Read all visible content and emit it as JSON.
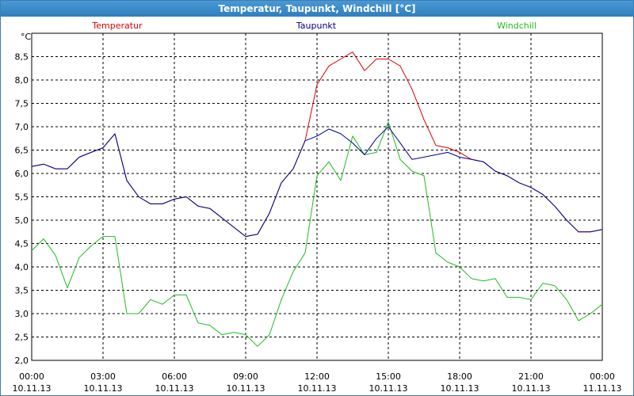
{
  "window": {
    "title": "Temperatur, Taupunkt, Windchill [°C]"
  },
  "chart_data": {
    "type": "line",
    "title": "Temperatur, Taupunkt, Windchill [°C]",
    "ylabel": "°C",
    "xlabel": "",
    "ylim": [
      2.0,
      9.0
    ],
    "xlim": [
      0,
      24
    ],
    "grid": true,
    "legend_position": "top",
    "y_ticks": [
      "2,0",
      "2,5",
      "3,0",
      "3,5",
      "4,0",
      "4,5",
      "5,0",
      "5,5",
      "6,0",
      "6,5",
      "7,0",
      "7,5",
      "8,0",
      "8,5"
    ],
    "y_tick_values": [
      2.0,
      2.5,
      3.0,
      3.5,
      4.0,
      4.5,
      5.0,
      5.5,
      6.0,
      6.5,
      7.0,
      7.5,
      8.0,
      8.5
    ],
    "x_ticks": [
      {
        "time": "00:00",
        "date": "10.11.13",
        "hour": 0
      },
      {
        "time": "03:00",
        "date": "10.11.13",
        "hour": 3
      },
      {
        "time": "06:00",
        "date": "10.11.13",
        "hour": 6
      },
      {
        "time": "09:00",
        "date": "10.11.13",
        "hour": 9
      },
      {
        "time": "12:00",
        "date": "10.11.13",
        "hour": 12
      },
      {
        "time": "15:00",
        "date": "10.11.13",
        "hour": 15
      },
      {
        "time": "18:00",
        "date": "10.11.13",
        "hour": 18
      },
      {
        "time": "21:00",
        "date": "10.11.13",
        "hour": 21
      },
      {
        "time": "00:00",
        "date": "11.11.13",
        "hour": 24
      }
    ],
    "x_hours": [
      0,
      0.5,
      1,
      1.5,
      2,
      2.5,
      3,
      3.5,
      4,
      4.5,
      5,
      5.5,
      6,
      6.5,
      7,
      7.5,
      8,
      8.5,
      9,
      9.5,
      10,
      10.5,
      11,
      11.5,
      12,
      12.5,
      13,
      13.5,
      14,
      14.5,
      15,
      15.5,
      16,
      16.5,
      17,
      17.5,
      18,
      18.5,
      19,
      19.5,
      20,
      20.5,
      21,
      21.5,
      22,
      22.5,
      23,
      23.5,
      24
    ],
    "series": [
      {
        "name": "Temperatur",
        "color": "#dd0000",
        "values": [
          6.15,
          6.2,
          6.1,
          6.1,
          6.35,
          6.45,
          6.55,
          6.85,
          5.85,
          5.5,
          5.35,
          5.35,
          5.45,
          5.5,
          5.3,
          5.25,
          5.05,
          4.85,
          4.65,
          4.7,
          5.15,
          5.8,
          6.1,
          6.7,
          7.9,
          8.3,
          8.45,
          8.6,
          8.2,
          8.45,
          8.45,
          8.3,
          7.8,
          7.15,
          6.6,
          6.55,
          6.45,
          6.3,
          6.25,
          6.05,
          5.95,
          5.8,
          5.7,
          5.55,
          5.3,
          5.0,
          4.75,
          4.75,
          4.8
        ]
      },
      {
        "name": "Taupunkt",
        "color": "#00008b",
        "values": [
          6.15,
          6.2,
          6.1,
          6.1,
          6.35,
          6.45,
          6.55,
          6.85,
          5.85,
          5.5,
          5.35,
          5.35,
          5.45,
          5.5,
          5.3,
          5.25,
          5.05,
          4.85,
          4.65,
          4.7,
          5.15,
          5.8,
          6.1,
          6.7,
          6.8,
          6.95,
          6.85,
          6.65,
          6.4,
          6.75,
          7.0,
          6.65,
          6.3,
          6.35,
          6.4,
          6.45,
          6.35,
          6.3,
          6.25,
          6.05,
          5.95,
          5.8,
          5.7,
          5.55,
          5.3,
          5.0,
          4.75,
          4.75,
          4.8
        ]
      },
      {
        "name": "Windchill",
        "color": "#22bb22",
        "values": [
          4.35,
          4.6,
          4.25,
          3.55,
          4.2,
          4.45,
          4.65,
          4.65,
          3.0,
          3.0,
          3.3,
          3.2,
          3.4,
          3.4,
          2.8,
          2.75,
          2.55,
          2.6,
          2.55,
          2.3,
          2.55,
          3.3,
          3.9,
          4.3,
          5.95,
          6.25,
          5.85,
          6.8,
          6.4,
          6.45,
          7.1,
          6.3,
          6.05,
          5.95,
          4.3,
          4.1,
          4.0,
          3.75,
          3.7,
          3.75,
          3.35,
          3.35,
          3.3,
          3.65,
          3.6,
          3.3,
          2.85,
          3.0,
          3.2
        ]
      }
    ]
  }
}
